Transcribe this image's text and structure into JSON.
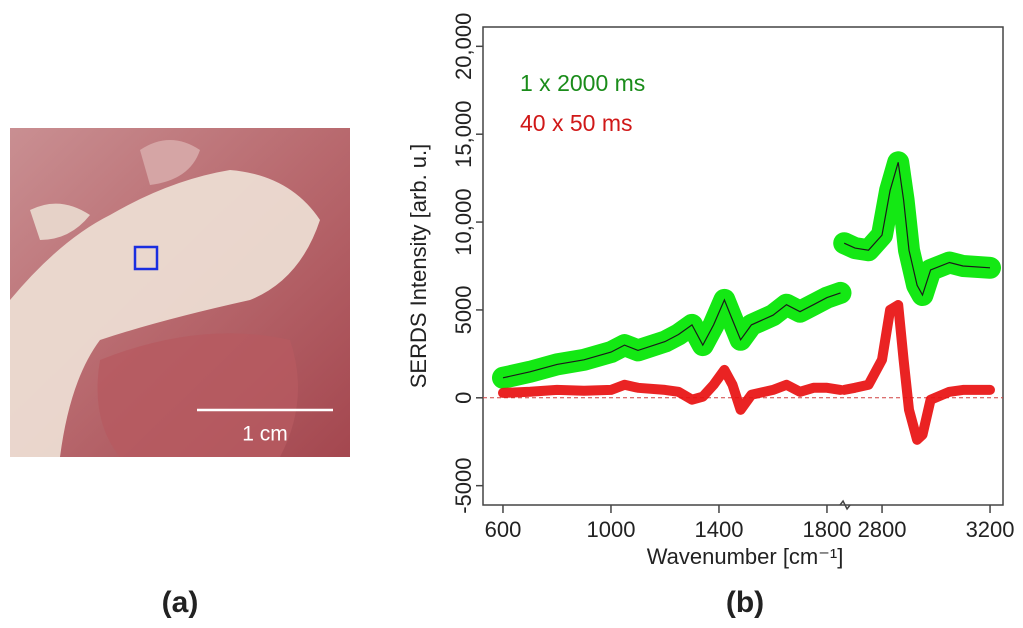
{
  "photo": {
    "scale_bar_label": "1 cm",
    "panel_label": "(a)"
  },
  "chart_data": {
    "type": "line",
    "panel_label": "(b)",
    "x_label": "Wavenumber [cm⁻¹]",
    "y_label": "SERDS Intensity [arb. u.]",
    "x": [
      600,
      700,
      800,
      900,
      1000,
      1050,
      1100,
      1200,
      1250,
      1300,
      1340,
      1380,
      1420,
      1450,
      1480,
      1520,
      1600,
      1650,
      1700,
      1750,
      1800,
      1850,
      2200,
      2660,
      2700,
      2750,
      2800,
      2830,
      2860,
      2880,
      2900,
      2930,
      2950,
      2980,
      3050,
      3100,
      3200
    ],
    "series": [
      {
        "name": "1 x 2000 ms",
        "color": "#00e600",
        "label_color": "#1a8c1a",
        "outline": "#1a1a1a",
        "values": [
          1140,
          1480,
          1900,
          2160,
          2600,
          3000,
          2700,
          3200,
          3600,
          4150,
          3000,
          4150,
          5570,
          4430,
          3300,
          4150,
          4700,
          5300,
          4900,
          5300,
          5700,
          5970,
          null,
          8800,
          8520,
          8400,
          9260,
          11800,
          13400,
          11250,
          8400,
          6400,
          5850,
          7270,
          7700,
          7500,
          7400
        ]
      },
      {
        "name": "40 x 50 ms",
        "color": "#e81010",
        "label_color": "#d01818",
        "values": [
          280,
          340,
          450,
          400,
          450,
          740,
          570,
          450,
          340,
          -110,
          60,
          740,
          1590,
          740,
          -680,
          170,
          450,
          740,
          340,
          570,
          570,
          450,
          null,
          450,
          570,
          740,
          2160,
          5000,
          5280,
          2160,
          -680,
          -2390,
          -2100,
          -110,
          340,
          450,
          450
        ]
      }
    ],
    "xlim": [
      526,
      3248
    ],
    "xbreak": [
      1867,
      2663
    ],
    "xticks": [
      600,
      1000,
      1400,
      1800,
      2800,
      3200
    ],
    "ylim": [
      -6100,
      21100
    ],
    "yticks": [
      -5000,
      0,
      5000,
      {
        "value": 10000,
        "label": "10,000"
      },
      {
        "value": 15000,
        "label": "15,000"
      },
      {
        "value": 20000,
        "label": "20,000"
      }
    ],
    "zero_line": {
      "value": 0,
      "color": "#d04040"
    }
  }
}
